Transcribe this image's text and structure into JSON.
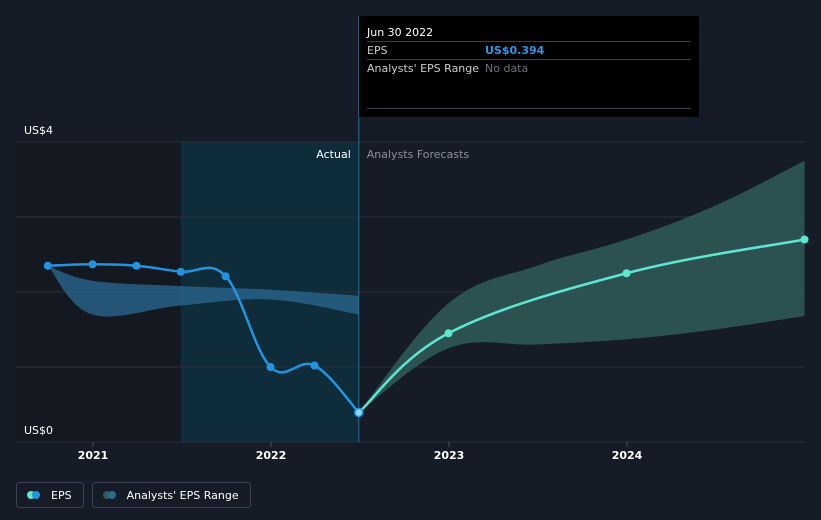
{
  "tooltip": {
    "date": "Jun 30 2022",
    "rows": [
      {
        "key": "EPS",
        "value": "US$0.394"
      },
      {
        "key": "Analysts' EPS Range",
        "value": "No data"
      }
    ]
  },
  "labels": {
    "actual": "Actual",
    "forecast": "Analysts Forecasts"
  },
  "legend": {
    "eps": "EPS",
    "range": "Analysts' EPS Range"
  },
  "colors": {
    "background": "#161c27",
    "eps_actual": "#2394df",
    "eps_forecast": "#5fe6cf",
    "range_actual": "#2b6a93",
    "range_forecast": "#2f5c58",
    "highlight_band": "#0f2c3b"
  },
  "chart_data": {
    "type": "line",
    "title": "",
    "xlabel": "",
    "ylabel": "",
    "y_ticks": [
      {
        "value": 0,
        "label": "US$0"
      },
      {
        "value": 4,
        "label": "US$4"
      }
    ],
    "x_ticks": [
      "2021",
      "2022",
      "2023",
      "2024"
    ],
    "ylim": [
      0,
      4
    ],
    "grid": true,
    "legend_position": "bottom-left",
    "actual_cutoff": "2022-06-30",
    "highlight_start": "2021-06-30",
    "series": [
      {
        "name": "EPS",
        "segment": "actual",
        "points": [
          {
            "date": "2020-09-30",
            "value": 2.35
          },
          {
            "date": "2020-12-31",
            "value": 2.37
          },
          {
            "date": "2021-03-31",
            "value": 2.35
          },
          {
            "date": "2021-06-30",
            "value": 2.27
          },
          {
            "date": "2021-09-30",
            "value": 2.21
          },
          {
            "date": "2021-12-31",
            "value": 1.0
          },
          {
            "date": "2022-03-31",
            "value": 1.02
          },
          {
            "date": "2022-06-30",
            "value": 0.394
          }
        ]
      },
      {
        "name": "EPS",
        "segment": "forecast",
        "points": [
          {
            "date": "2022-06-30",
            "value": 0.394
          },
          {
            "date": "2022-12-31",
            "value": 1.45
          },
          {
            "date": "2023-12-31",
            "value": 2.25
          },
          {
            "date": "2024-12-31",
            "value": 2.7
          }
        ]
      },
      {
        "name": "Analysts' EPS Range",
        "segment": "actual",
        "upper": [
          {
            "date": "2020-09-30",
            "value": 2.35
          },
          {
            "date": "2020-12-31",
            "value": 2.15
          },
          {
            "date": "2021-06-30",
            "value": 2.08
          },
          {
            "date": "2021-12-31",
            "value": 2.03
          },
          {
            "date": "2022-06-30",
            "value": 1.95
          }
        ],
        "lower": [
          {
            "date": "2020-09-30",
            "value": 2.35
          },
          {
            "date": "2020-12-31",
            "value": 1.7
          },
          {
            "date": "2021-06-30",
            "value": 1.82
          },
          {
            "date": "2021-12-31",
            "value": 1.9
          },
          {
            "date": "2022-06-30",
            "value": 1.7
          }
        ]
      },
      {
        "name": "Analysts' EPS Range",
        "segment": "forecast",
        "upper": [
          {
            "date": "2022-06-30",
            "value": 0.394
          },
          {
            "date": "2022-12-31",
            "value": 1.85
          },
          {
            "date": "2023-06-30",
            "value": 2.35
          },
          {
            "date": "2023-12-31",
            "value": 2.7
          },
          {
            "date": "2024-06-30",
            "value": 3.15
          },
          {
            "date": "2024-12-31",
            "value": 3.75
          }
        ],
        "lower": [
          {
            "date": "2022-06-30",
            "value": 0.394
          },
          {
            "date": "2022-12-31",
            "value": 1.25
          },
          {
            "date": "2023-06-30",
            "value": 1.3
          },
          {
            "date": "2023-12-31",
            "value": 1.37
          },
          {
            "date": "2024-06-30",
            "value": 1.5
          },
          {
            "date": "2024-12-31",
            "value": 1.68
          }
        ]
      }
    ]
  }
}
